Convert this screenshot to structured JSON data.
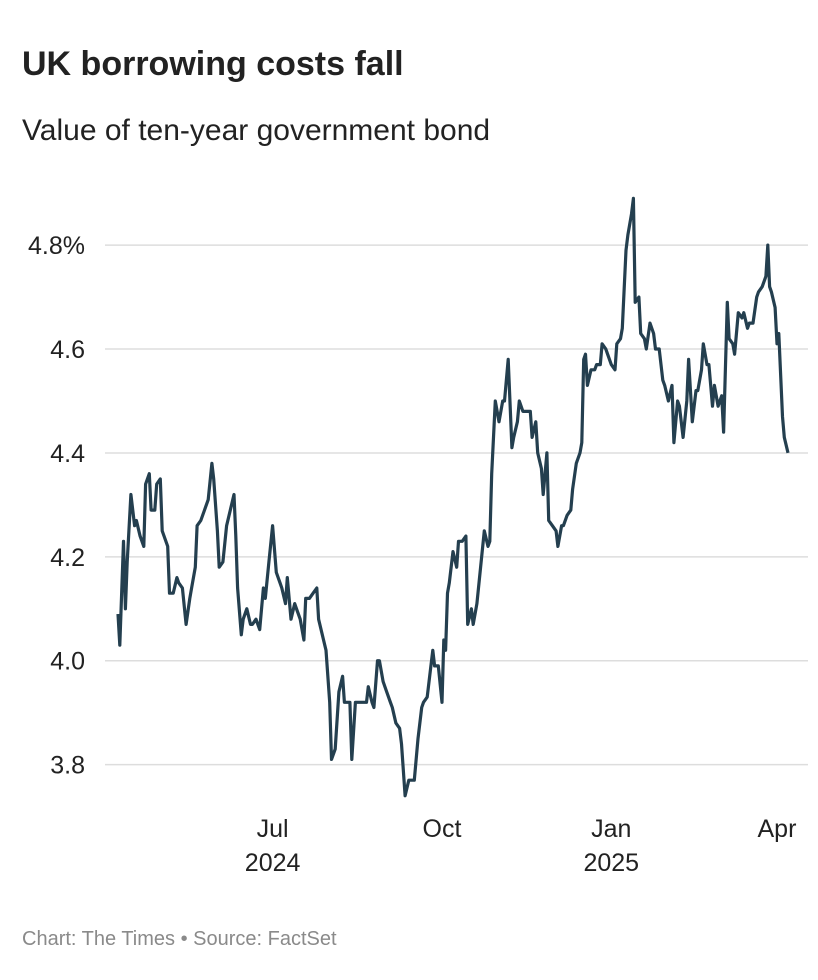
{
  "chart_data": {
    "type": "line",
    "title": "UK borrowing costs fall",
    "subtitle": "Value of ten-year government bond",
    "footer": "Chart: The Times • Source: FactSet",
    "color": "#243f4f",
    "grid": true,
    "x": [
      0,
      1,
      3,
      4,
      5,
      7,
      9,
      10,
      12,
      14,
      15,
      17,
      18,
      20,
      21,
      23,
      24,
      27,
      28,
      30,
      32,
      33,
      35,
      37,
      39,
      40,
      42,
      43,
      45,
      47,
      49,
      51,
      52,
      54,
      55,
      57,
      59,
      61,
      63,
      64,
      65,
      67,
      68,
      70,
      72,
      73,
      75,
      77,
      79,
      80,
      82,
      84,
      86,
      88,
      89,
      91,
      92,
      94,
      96,
      97,
      99,
      101,
      102,
      104,
      106,
      108,
      109,
      111,
      113,
      115,
      116,
      118,
      120,
      122,
      123,
      126,
      127,
      129,
      131,
      133,
      135,
      136,
      138,
      139,
      141,
      142,
      144,
      146,
      148,
      149,
      151,
      153,
      154,
      156,
      158,
      160,
      161,
      163,
      165,
      166,
      168,
      170,
      171,
      172,
      174,
      176,
      177,
      178,
      179,
      180,
      182,
      184,
      185,
      187,
      189,
      190,
      192,
      193,
      195,
      197,
      199,
      201,
      202,
      203,
      205,
      207,
      209,
      210,
      212,
      214,
      215,
      217,
      218,
      220,
      222,
      224,
      225,
      227,
      228,
      230,
      231,
      233,
      234,
      236,
      238,
      239,
      241,
      242,
      244,
      246,
      247,
      249,
      251,
      252,
      253,
      254,
      255,
      257,
      259,
      260,
      262,
      263,
      265,
      266,
      268,
      270,
      271,
      273,
      274,
      276,
      277,
      279,
      280,
      281,
      283,
      284,
      286,
      287,
      289,
      291,
      292,
      294,
      296,
      297,
      299,
      301,
      302,
      304,
      305,
      307,
      309,
      310,
      312,
      314,
      315,
      317,
      318,
      320,
      321,
      323,
      324,
      326,
      328,
      329,
      331,
      332,
      334,
      335,
      337,
      339,
      340,
      342,
      343,
      345,
      347,
      348,
      350,
      352,
      353,
      354,
      355,
      357,
      358,
      359,
      361,
      362,
      364
    ],
    "values": [
      4.09,
      4.03,
      4.23,
      4.1,
      4.19,
      4.32,
      4.26,
      4.27,
      4.24,
      4.22,
      4.34,
      4.36,
      4.29,
      4.29,
      4.34,
      4.35,
      4.25,
      4.22,
      4.13,
      4.13,
      4.16,
      4.15,
      4.14,
      4.07,
      4.12,
      4.14,
      4.18,
      4.26,
      4.27,
      4.29,
      4.31,
      4.38,
      4.35,
      4.25,
      4.18,
      4.19,
      4.26,
      4.29,
      4.32,
      4.24,
      4.14,
      4.05,
      4.08,
      4.1,
      4.07,
      4.07,
      4.08,
      4.06,
      4.14,
      4.12,
      4.19,
      4.26,
      4.17,
      4.15,
      4.14,
      4.11,
      4.16,
      4.08,
      4.11,
      4.1,
      4.08,
      4.04,
      4.12,
      4.12,
      4.13,
      4.14,
      4.08,
      4.05,
      4.02,
      3.92,
      3.81,
      3.83,
      3.94,
      3.97,
      3.92,
      3.92,
      3.81,
      3.92,
      3.92,
      3.92,
      3.92,
      3.95,
      3.92,
      3.91,
      4.0,
      4.0,
      3.96,
      3.94,
      3.92,
      3.91,
      3.88,
      3.87,
      3.84,
      3.74,
      3.77,
      3.77,
      3.77,
      3.85,
      3.91,
      3.92,
      3.93,
      3.99,
      4.02,
      3.99,
      3.99,
      3.92,
      4.04,
      4.02,
      4.13,
      4.15,
      4.21,
      4.18,
      4.23,
      4.23,
      4.24,
      4.07,
      4.1,
      4.07,
      4.11,
      4.18,
      4.25,
      4.22,
      4.23,
      4.36,
      4.5,
      4.46,
      4.5,
      4.5,
      4.58,
      4.41,
      4.43,
      4.46,
      4.5,
      4.48,
      4.48,
      4.48,
      4.43,
      4.46,
      4.4,
      4.37,
      4.32,
      4.4,
      4.27,
      4.26,
      4.25,
      4.22,
      4.26,
      4.26,
      4.28,
      4.29,
      4.33,
      4.38,
      4.4,
      4.42,
      4.58,
      4.59,
      4.53,
      4.56,
      4.56,
      4.57,
      4.57,
      4.61,
      4.6,
      4.59,
      4.57,
      4.56,
      4.61,
      4.62,
      4.64,
      4.79,
      4.82,
      4.86,
      4.89,
      4.69,
      4.7,
      4.63,
      4.62,
      4.6,
      4.65,
      4.63,
      4.6,
      4.6,
      4.54,
      4.53,
      4.5,
      4.53,
      4.42,
      4.5,
      4.49,
      4.43,
      4.5,
      4.58,
      4.46,
      4.52,
      4.52,
      4.56,
      4.61,
      4.57,
      4.57,
      4.49,
      4.53,
      4.49,
      4.51,
      4.44,
      4.69,
      4.62,
      4.61,
      4.59,
      4.67,
      4.66,
      4.67,
      4.64,
      4.65,
      4.65,
      4.7,
      4.71,
      4.72,
      4.74,
      4.8,
      4.72,
      4.71,
      4.68,
      4.61,
      4.63,
      4.47,
      4.43,
      4.4
    ],
    "xlim": [
      0,
      364
    ],
    "xticks": [
      {
        "value": 84,
        "label": "Jul\n2024"
      },
      {
        "value": 176,
        "label": "Oct"
      },
      {
        "value": 268,
        "label": "Jan\n2025"
      },
      {
        "value": 358,
        "label": "Apr"
      }
    ],
    "ylim": [
      3.73,
      4.91
    ],
    "yticks": [
      3.8,
      {
        "value": 4,
        "label": "4.0"
      },
      4.2,
      4.4,
      4.6,
      {
        "value": 4.8,
        "label": "4.8%"
      }
    ]
  }
}
